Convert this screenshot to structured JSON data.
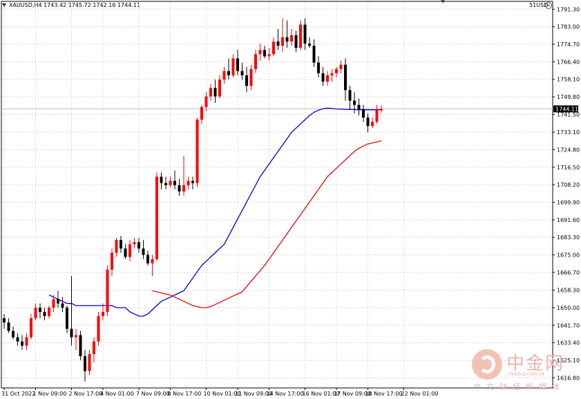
{
  "header": {
    "symbol_info": "XAUUSD,H4  1743.42 1745.72 1742.16 1744.11",
    "broker": "51USD"
  },
  "watermark": {
    "title": "中金网",
    "url": "CNGOLD.COM.CN",
    "subtitle": "中文财经新媒体"
  },
  "colors": {
    "bull": "#ff0000",
    "bear": "#000000",
    "ma_fast": "#0000cc",
    "ma_slow": "#ee0000",
    "grid": "#d8d8d8",
    "axis": "#000000",
    "price_line": "#c0c0c0"
  },
  "chart_data": {
    "type": "candlestick",
    "title": "XAUUSD,H4",
    "ylim": [
      1612.0,
      1795.0
    ],
    "grid": true,
    "current_price": 1744.11,
    "y_ticks": [
      1791.3,
      1783.0,
      1774.7,
      1766.4,
      1758.1,
      1749.8,
      1741.5,
      1733.1,
      1724.8,
      1716.5,
      1708.2,
      1699.9,
      1691.6,
      1683.3,
      1675.0,
      1666.7,
      1658.3,
      1650.0,
      1641.7,
      1633.4,
      1625.1,
      1616.8
    ],
    "x_tick_labels": [
      {
        "bar": 0,
        "label": "31 Oct 2022"
      },
      {
        "bar": 7,
        "label": "1 Nov 09:00"
      },
      {
        "bar": 15,
        "label": "2 Nov 17:00"
      },
      {
        "bar": 22,
        "label": "4 Nov 01:00"
      },
      {
        "bar": 30,
        "label": "7 Nov 09:00"
      },
      {
        "bar": 37,
        "label": "8 Nov 17:00"
      },
      {
        "bar": 45,
        "label": "10 Nov 01:00"
      },
      {
        "bar": 52,
        "label": "11 Nov 09:00"
      },
      {
        "bar": 59,
        "label": "14 Nov 17:00"
      },
      {
        "bar": 67,
        "label": "16 Nov 01:00"
      },
      {
        "bar": 74,
        "label": "17 Nov 09:00"
      },
      {
        "bar": 81,
        "label": "18 Nov 17:00"
      },
      {
        "bar": 89,
        "label": "22 Nov 01:00"
      }
    ],
    "candles": [
      [
        1645,
        1647,
        1640,
        1643
      ],
      [
        1643,
        1645,
        1638,
        1639
      ],
      [
        1639,
        1641,
        1635,
        1636
      ],
      [
        1636,
        1638,
        1632,
        1634
      ],
      [
        1634,
        1637,
        1630,
        1632
      ],
      [
        1632,
        1638,
        1630,
        1636
      ],
      [
        1636,
        1647,
        1635,
        1645
      ],
      [
        1645,
        1652,
        1644,
        1650
      ],
      [
        1650,
        1652,
        1645,
        1648
      ],
      [
        1648,
        1650,
        1644,
        1646
      ],
      [
        1646,
        1651,
        1645,
        1650
      ],
      [
        1650,
        1656,
        1648,
        1654
      ],
      [
        1654,
        1658,
        1650,
        1652
      ],
      [
        1652,
        1655,
        1648,
        1650
      ],
      [
        1650,
        1651,
        1638,
        1640
      ],
      [
        1640,
        1665,
        1632,
        1636
      ],
      [
        1636,
        1640,
        1630,
        1637
      ],
      [
        1637,
        1639,
        1625,
        1627
      ],
      [
        1627,
        1630,
        1615,
        1620
      ],
      [
        1620,
        1630,
        1618,
        1628
      ],
      [
        1628,
        1636,
        1624,
        1634
      ],
      [
        1634,
        1648,
        1632,
        1646
      ],
      [
        1646,
        1652,
        1644,
        1648
      ],
      [
        1648,
        1670,
        1646,
        1668
      ],
      [
        1668,
        1678,
        1665,
        1676
      ],
      [
        1676,
        1683,
        1674,
        1682
      ],
      [
        1682,
        1684,
        1676,
        1678
      ],
      [
        1678,
        1680,
        1673,
        1674
      ],
      [
        1674,
        1682,
        1672,
        1680
      ],
      [
        1680,
        1683,
        1678,
        1681
      ],
      [
        1681,
        1683,
        1676,
        1678
      ],
      [
        1678,
        1682,
        1673,
        1675
      ],
      [
        1675,
        1677,
        1670,
        1671
      ],
      [
        1671,
        1675,
        1665,
        1673
      ],
      [
        1673,
        1714,
        1672,
        1712
      ],
      [
        1712,
        1714,
        1706,
        1709
      ],
      [
        1709,
        1712,
        1706,
        1708
      ],
      [
        1708,
        1712,
        1707,
        1710
      ],
      [
        1710,
        1715,
        1706,
        1708
      ],
      [
        1708,
        1711,
        1703,
        1705
      ],
      [
        1705,
        1722,
        1703,
        1708
      ],
      [
        1708,
        1712,
        1706,
        1710
      ],
      [
        1710,
        1712,
        1706,
        1709
      ],
      [
        1709,
        1740,
        1707,
        1739
      ],
      [
        1739,
        1746,
        1737,
        1745
      ],
      [
        1745,
        1752,
        1743,
        1750
      ],
      [
        1750,
        1756,
        1748,
        1754
      ],
      [
        1754,
        1758,
        1747,
        1750
      ],
      [
        1750,
        1760,
        1749,
        1758
      ],
      [
        1758,
        1764,
        1756,
        1762
      ],
      [
        1762,
        1768,
        1758,
        1760
      ],
      [
        1760,
        1770,
        1759,
        1768
      ],
      [
        1768,
        1772,
        1760,
        1762
      ],
      [
        1762,
        1766,
        1758,
        1760
      ],
      [
        1760,
        1764,
        1752,
        1755
      ],
      [
        1755,
        1765,
        1753,
        1763
      ],
      [
        1763,
        1772,
        1761,
        1770
      ],
      [
        1770,
        1775,
        1767,
        1772
      ],
      [
        1772,
        1774,
        1768,
        1769
      ],
      [
        1769,
        1773,
        1767,
        1770
      ],
      [
        1770,
        1778,
        1769,
        1776
      ],
      [
        1776,
        1782,
        1772,
        1774
      ],
      [
        1774,
        1787,
        1771,
        1778
      ],
      [
        1778,
        1786,
        1773,
        1776
      ],
      [
        1776,
        1782,
        1774,
        1779
      ],
      [
        1779,
        1781,
        1771,
        1773
      ],
      [
        1773,
        1786,
        1772,
        1784
      ],
      [
        1784,
        1787,
        1772,
        1775
      ],
      [
        1775,
        1778,
        1773,
        1774
      ],
      [
        1774,
        1777,
        1764,
        1766
      ],
      [
        1766,
        1769,
        1759,
        1761
      ],
      [
        1761,
        1764,
        1755,
        1757
      ],
      [
        1757,
        1762,
        1755,
        1760
      ],
      [
        1760,
        1763,
        1757,
        1761
      ],
      [
        1761,
        1764,
        1759,
        1763
      ],
      [
        1763,
        1767,
        1761,
        1765
      ],
      [
        1765,
        1768,
        1748,
        1753
      ],
      [
        1753,
        1755,
        1744,
        1748
      ],
      [
        1748,
        1752,
        1742,
        1746
      ],
      [
        1746,
        1749,
        1741,
        1744
      ],
      [
        1744,
        1746,
        1738,
        1740
      ],
      [
        1740,
        1742,
        1733,
        1736
      ],
      [
        1736,
        1740,
        1735,
        1738
      ],
      [
        1738,
        1746,
        1737,
        1744
      ],
      [
        1743.42,
        1745.72,
        1742.16,
        1744.11
      ]
    ],
    "series": [
      {
        "values": [
          1656,
          1655,
          1654,
          1653,
          1652,
          1652,
          1651,
          1651,
          1651,
          1651,
          1651,
          1651,
          1651,
          1651,
          1651,
          1650,
          1650,
          1650,
          1648,
          1647,
          1646,
          1646,
          1647,
          1649,
          1651,
          1653,
          1654,
          1655,
          1656,
          1657,
          1658,
          1661,
          1664,
          1667,
          1670,
          1672,
          1674,
          1676,
          1678,
          1680,
          1684,
          1688,
          1692,
          1696,
          1700,
          1704,
          1708,
          1712,
          1715,
          1718,
          1721,
          1724,
          1727,
          1730,
          1733,
          1735,
          1737,
          1739,
          1741,
          1742.5,
          1743.5,
          1744.2,
          1744.5,
          1744.3,
          1744.1,
          1744.0,
          1743.9,
          1743.8,
          1743.8,
          1743.7,
          1743.7,
          1743.7,
          1743.7,
          1743.7,
          1743.7
        ]
      },
      {
        "values": [
          1658,
          1657.5,
          1657,
          1656.5,
          1656,
          1655,
          1654,
          1653,
          1652,
          1651,
          1650.5,
          1650,
          1650,
          1650.5,
          1651.5,
          1652.5,
          1653.5,
          1654.5,
          1655.5,
          1656.5,
          1657.5,
          1660,
          1662.5,
          1665,
          1667.5,
          1670,
          1673,
          1676,
          1679,
          1682,
          1685,
          1688,
          1691,
          1694,
          1697,
          1700,
          1703,
          1706,
          1709,
          1712,
          1714,
          1716,
          1718,
          1720,
          1722,
          1724,
          1725.5,
          1726.5,
          1727.5,
          1728,
          1728.5,
          1729
        ]
      }
    ]
  }
}
